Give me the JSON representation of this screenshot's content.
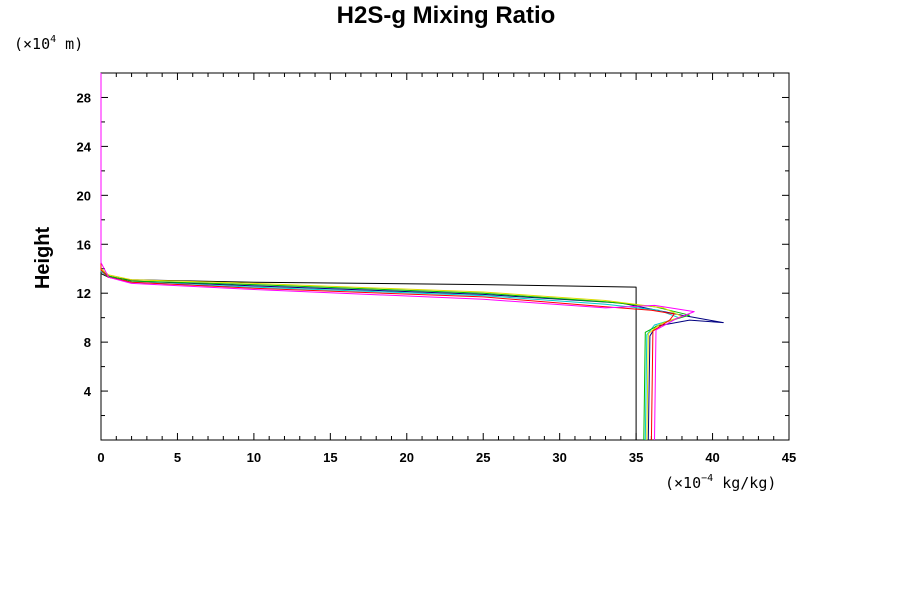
{
  "chart_data": {
    "type": "line",
    "title": "H2S-g Mixing Ratio",
    "ylabel": "Height",
    "y_unit": {
      "prefix": "(×10",
      "exp": "4",
      "suffix": " m)"
    },
    "x_unit": {
      "prefix": "(×10",
      "exp": "−4",
      "suffix": " kg/kg)"
    },
    "xlim": [
      0,
      45
    ],
    "ylim": [
      0,
      30
    ],
    "x_ticks": [
      "0",
      "5",
      "10",
      "15",
      "20",
      "25",
      "30",
      "35",
      "40",
      "45"
    ],
    "y_ticks": [
      "4",
      "8",
      "12",
      "16",
      "20",
      "24",
      "28"
    ],
    "grid": false,
    "series": [
      {
        "color": "#000000",
        "points": [
          [
            35,
            0
          ],
          [
            35,
            12.5
          ],
          [
            25,
            12.7
          ],
          [
            10,
            12.9
          ],
          [
            2,
            13.1
          ],
          [
            0.5,
            13.3
          ],
          [
            0,
            13.6
          ],
          [
            0,
            30
          ]
        ]
      },
      {
        "color": "#000080",
        "points": [
          [
            35.8,
            0
          ],
          [
            35.9,
            8.5
          ],
          [
            36.3,
            9.3
          ],
          [
            38.5,
            9.8
          ],
          [
            40.7,
            9.6
          ],
          [
            38,
            10.2
          ],
          [
            34,
            11.2
          ],
          [
            25,
            11.9
          ],
          [
            10,
            12.6
          ],
          [
            2,
            13
          ],
          [
            0.5,
            13.4
          ],
          [
            0,
            13.8
          ],
          [
            0,
            30
          ]
        ]
      },
      {
        "color": "#00cccc",
        "points": [
          [
            35.6,
            0
          ],
          [
            35.7,
            8.6
          ],
          [
            36.2,
            9.4
          ],
          [
            37.8,
            10
          ],
          [
            36.5,
            10.6
          ],
          [
            33,
            11.1
          ],
          [
            25,
            11.8
          ],
          [
            10,
            12.5
          ],
          [
            2,
            12.9
          ],
          [
            0.5,
            13.3
          ],
          [
            0,
            13.8
          ],
          [
            0,
            30
          ]
        ]
      },
      {
        "color": "#00bb00",
        "points": [
          [
            35.5,
            0
          ],
          [
            35.6,
            8.8
          ],
          [
            36.8,
            9.6
          ],
          [
            38.5,
            10.2
          ],
          [
            36.2,
            10.9
          ],
          [
            33,
            11.3
          ],
          [
            25,
            12
          ],
          [
            10,
            12.7
          ],
          [
            2,
            13
          ],
          [
            0.5,
            13.4
          ],
          [
            0,
            13.9
          ],
          [
            0,
            30
          ]
        ]
      },
      {
        "color": "#dddd00",
        "points": [
          [
            35.7,
            0
          ],
          [
            35.8,
            8.7
          ],
          [
            36.6,
            9.5
          ],
          [
            38,
            10.1
          ],
          [
            36.8,
            10.8
          ],
          [
            33,
            11.4
          ],
          [
            25,
            12.1
          ],
          [
            10,
            12.8
          ],
          [
            2,
            13.1
          ],
          [
            0.5,
            13.5
          ],
          [
            0,
            14
          ],
          [
            0,
            30
          ]
        ]
      },
      {
        "color": "#ff0000",
        "points": [
          [
            36,
            0
          ],
          [
            36.1,
            8.9
          ],
          [
            37.2,
            9.8
          ],
          [
            37.5,
            10.3
          ],
          [
            36,
            10.6
          ],
          [
            33,
            10.9
          ],
          [
            25,
            11.7
          ],
          [
            10,
            12.4
          ],
          [
            2,
            12.9
          ],
          [
            0.5,
            13.3
          ],
          [
            0,
            13.9
          ],
          [
            0,
            30
          ]
        ]
      },
      {
        "color": "#ff00ff",
        "points": [
          [
            36.2,
            0
          ],
          [
            36.3,
            9
          ],
          [
            37.6,
            9.9
          ],
          [
            38.8,
            10.5
          ],
          [
            36.2,
            11
          ],
          [
            33,
            10.8
          ],
          [
            25,
            11.5
          ],
          [
            10,
            12.3
          ],
          [
            2,
            12.8
          ],
          [
            0.5,
            13.3
          ],
          [
            0,
            14.5
          ],
          [
            0,
            30
          ]
        ]
      }
    ]
  }
}
